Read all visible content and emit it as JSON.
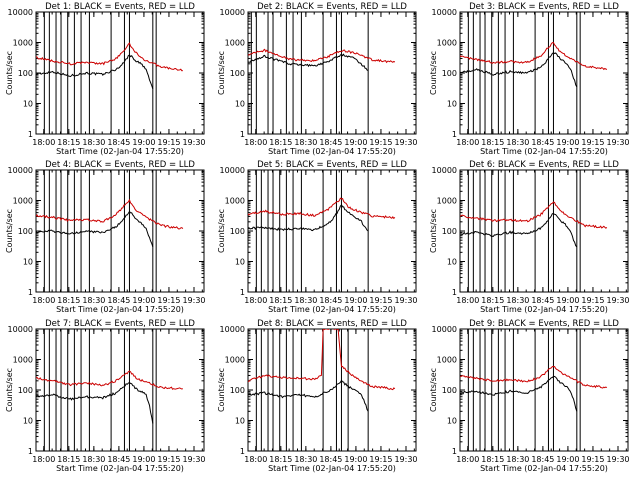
{
  "chart_data": [
    {
      "type": "line",
      "title": "Det 1: BLACK = Events, RED = LLD",
      "xlabel": "Start Time (02-Jan-04 17:55:20)",
      "ylabel": "Counts/sec",
      "xlim": [
        17.9222,
        19.6
      ],
      "ylim": [
        1,
        10000
      ],
      "yscale": "log",
      "xticks": [
        "18:00",
        "18:15",
        "18:30",
        "18:45",
        "19:00",
        "19:15",
        "19:30"
      ],
      "yticks": [
        "1",
        "10",
        "100",
        "1000",
        "10000"
      ],
      "vlines_min": [
        -2,
        5,
        8,
        12,
        15,
        19,
        23,
        27,
        32,
        45,
        53,
        56,
        70,
        72
      ],
      "series": [
        {
          "name": "Events",
          "color": "#000000",
          "x_min": [
            -3.5,
            -3,
            0,
            10,
            20,
            30,
            40,
            48,
            52,
            56,
            60,
            63,
            66,
            68,
            70
          ],
          "values": [
            1.5,
            70,
            90,
            110,
            80,
            100,
            90,
            130,
            200,
            400,
            250,
            200,
            130,
            60,
            30
          ]
        },
        {
          "name": "LLD",
          "color": "#cc0000",
          "x_min": [
            -30,
            0,
            10,
            20,
            30,
            40,
            48,
            52,
            56,
            60,
            66,
            75,
            88
          ],
          "values": [
            200,
            320,
            250,
            200,
            220,
            200,
            300,
            500,
            900,
            450,
            250,
            160,
            120
          ]
        }
      ]
    },
    {
      "type": "line",
      "title": "Det 2: BLACK = Events, RED = LLD",
      "xlabel": "Start Time (02-Jan-04 17:55:20)",
      "ylabel": "Counts/sec",
      "xlim": [
        17.9222,
        19.6
      ],
      "ylim": [
        1,
        10000
      ],
      "yscale": "log",
      "xticks": [
        "18:00",
        "18:15",
        "18:30",
        "18:45",
        "19:00",
        "19:15",
        "19:30"
      ],
      "yticks": [
        "1",
        "10",
        "100",
        "1000",
        "10000"
      ],
      "vlines_min": [
        -2,
        2,
        5,
        12,
        15,
        23,
        27,
        32,
        45,
        53,
        56,
        72
      ],
      "series": [
        {
          "name": "Events",
          "color": "#000000",
          "x_min": [
            -3,
            -2.5,
            10,
            25,
            40,
            48,
            56,
            64,
            72
          ],
          "values": [
            15,
            200,
            350,
            200,
            170,
            240,
            400,
            300,
            120
          ]
        },
        {
          "name": "LLD",
          "color": "#cc0000",
          "x_min": [
            -30,
            0,
            10,
            25,
            40,
            48,
            56,
            64,
            75,
            88
          ],
          "values": [
            220,
            400,
            550,
            280,
            250,
            350,
            550,
            450,
            260,
            230
          ]
        }
      ]
    },
    {
      "type": "line",
      "title": "Det 3: BLACK = Events, RED = LLD",
      "xlabel": "Start Time (02-Jan-04 17:55:20)",
      "ylabel": "Counts/sec",
      "xlim": [
        17.9222,
        19.6
      ],
      "ylim": [
        1,
        10000
      ],
      "yscale": "log",
      "xticks": [
        "18:00",
        "18:15",
        "18:30",
        "18:45",
        "19:00",
        "19:15",
        "19:30"
      ],
      "yticks": [
        "1",
        "10",
        "100",
        "1000",
        "10000"
      ],
      "vlines_min": [
        -2,
        5,
        8,
        12,
        15,
        19,
        23,
        27,
        32,
        45,
        53,
        56,
        70,
        72
      ],
      "series": [
        {
          "name": "Events",
          "color": "#000000",
          "x_min": [
            -3.5,
            -3,
            0,
            10,
            20,
            30,
            40,
            48,
            52,
            56,
            60,
            63,
            66,
            68,
            70
          ],
          "values": [
            2,
            80,
            100,
            130,
            90,
            110,
            100,
            150,
            250,
            500,
            300,
            220,
            150,
            70,
            35
          ]
        },
        {
          "name": "LLD",
          "color": "#cc0000",
          "x_min": [
            -30,
            0,
            10,
            20,
            30,
            40,
            48,
            52,
            56,
            60,
            66,
            75,
            88
          ],
          "values": [
            200,
            350,
            280,
            220,
            240,
            220,
            350,
            600,
            1000,
            500,
            300,
            170,
            130
          ]
        }
      ]
    },
    {
      "type": "line",
      "title": "Det 4: BLACK = Events, RED = LLD",
      "xlabel": "Start Time (02-Jan-04 17:55:20)",
      "ylabel": "Counts/sec",
      "xlim": [
        17.9222,
        19.6
      ],
      "ylim": [
        1,
        10000
      ],
      "yscale": "log",
      "xticks": [
        "18:00",
        "18:15",
        "18:30",
        "18:45",
        "19:00",
        "19:15",
        "19:30"
      ],
      "yticks": [
        "1",
        "10",
        "100",
        "1000",
        "10000"
      ],
      "vlines_min": [
        -2,
        5,
        8,
        12,
        15,
        19,
        23,
        27,
        32,
        45,
        53,
        56,
        70,
        72
      ],
      "series": [
        {
          "name": "Events",
          "color": "#000000",
          "x_min": [
            -3.5,
            -3,
            0,
            10,
            20,
            30,
            40,
            48,
            52,
            56,
            60,
            63,
            66,
            68,
            70
          ],
          "values": [
            3,
            70,
            90,
            100,
            80,
            100,
            90,
            140,
            220,
            450,
            250,
            180,
            120,
            60,
            30
          ]
        },
        {
          "name": "LLD",
          "color": "#cc0000",
          "x_min": [
            -30,
            0,
            10,
            20,
            30,
            40,
            48,
            52,
            56,
            60,
            66,
            75,
            88
          ],
          "values": [
            130,
            320,
            280,
            220,
            240,
            200,
            350,
            600,
            1000,
            500,
            280,
            150,
            120
          ]
        }
      ]
    },
    {
      "type": "line",
      "title": "Det 5: BLACK = Events, RED = LLD",
      "xlabel": "Start Time (02-Jan-04 17:55:20)",
      "ylabel": "Counts/sec",
      "xlim": [
        17.9222,
        19.6
      ],
      "ylim": [
        1,
        10000
      ],
      "yscale": "log",
      "xticks": [
        "18:00",
        "18:15",
        "18:30",
        "18:45",
        "19:00",
        "19:15",
        "19:30"
      ],
      "yticks": [
        "1",
        "10",
        "100",
        "1000",
        "10000"
      ],
      "vlines_min": [
        -2,
        5,
        8,
        12,
        15,
        19,
        23,
        27,
        32,
        45,
        53,
        56,
        72
      ],
      "series": [
        {
          "name": "Events",
          "color": "#000000",
          "x_min": [
            -3.5,
            -3,
            0,
            10,
            20,
            30,
            40,
            48,
            52,
            56,
            60,
            64,
            68,
            72
          ],
          "values": [
            4,
            100,
            120,
            130,
            110,
            120,
            110,
            170,
            300,
            700,
            400,
            300,
            200,
            100
          ]
        },
        {
          "name": "LLD",
          "color": "#cc0000",
          "x_min": [
            -30,
            0,
            10,
            20,
            30,
            40,
            48,
            52,
            56,
            60,
            66,
            75,
            88
          ],
          "values": [
            250,
            350,
            450,
            350,
            380,
            320,
            500,
            800,
            1200,
            600,
            450,
            300,
            280
          ]
        }
      ]
    },
    {
      "type": "line",
      "title": "Det 6: BLACK = Events, RED = LLD",
      "xlabel": "Start Time (02-Jan-04 17:55:20)",
      "ylabel": "Counts/sec",
      "xlim": [
        17.9222,
        19.6
      ],
      "ylim": [
        1,
        10000
      ],
      "yscale": "log",
      "xticks": [
        "18:00",
        "18:15",
        "18:30",
        "18:45",
        "19:00",
        "19:15",
        "19:30"
      ],
      "yticks": [
        "1",
        "10",
        "100",
        "1000",
        "10000"
      ],
      "vlines_min": [
        -2,
        5,
        8,
        12,
        15,
        19,
        23,
        27,
        32,
        45,
        53,
        56,
        70,
        72
      ],
      "series": [
        {
          "name": "Events",
          "color": "#000000",
          "x_min": [
            -3.5,
            -3,
            0,
            10,
            20,
            30,
            40,
            48,
            52,
            56,
            60,
            63,
            66,
            68,
            70
          ],
          "values": [
            3,
            60,
            80,
            90,
            70,
            90,
            80,
            120,
            200,
            400,
            220,
            170,
            110,
            50,
            30
          ]
        },
        {
          "name": "LLD",
          "color": "#cc0000",
          "x_min": [
            -30,
            0,
            10,
            20,
            30,
            40,
            48,
            52,
            56,
            60,
            66,
            75,
            88
          ],
          "values": [
            130,
            320,
            260,
            220,
            230,
            210,
            330,
            550,
            900,
            450,
            280,
            150,
            130
          ]
        }
      ]
    },
    {
      "type": "line",
      "title": "Det 7: BLACK = Events, RED = LLD",
      "xlabel": "Start Time (02-Jan-04 17:55:20)",
      "ylabel": "Counts/sec",
      "xlim": [
        17.9222,
        19.6
      ],
      "ylim": [
        1,
        10000
      ],
      "yscale": "log",
      "xticks": [
        "18:00",
        "18:15",
        "18:30",
        "18:45",
        "19:00",
        "19:15",
        "19:30"
      ],
      "yticks": [
        "1",
        "10",
        "100",
        "1000",
        "10000"
      ],
      "vlines_min": [
        -2,
        5,
        8,
        12,
        15,
        19,
        23,
        27,
        32,
        45,
        53,
        56,
        70,
        72
      ],
      "series": [
        {
          "name": "Events",
          "color": "#000000",
          "x_min": [
            -3.5,
            -3,
            0,
            10,
            20,
            30,
            40,
            48,
            52,
            56,
            60,
            63,
            66,
            68,
            70
          ],
          "values": [
            4,
            50,
            60,
            70,
            50,
            60,
            55,
            80,
            120,
            180,
            110,
            90,
            70,
            30,
            8
          ]
        },
        {
          "name": "LLD",
          "color": "#cc0000",
          "x_min": [
            -30,
            0,
            10,
            20,
            30,
            40,
            48,
            52,
            56,
            60,
            66,
            75,
            88
          ],
          "values": [
            100,
            250,
            200,
            150,
            170,
            140,
            200,
            280,
            400,
            250,
            180,
            120,
            110
          ]
        }
      ]
    },
    {
      "type": "line",
      "title": "Det 8: BLACK = Events, RED = LLD",
      "xlabel": "Start Time (02-Jan-04 17:55:20)",
      "ylabel": "Counts/sec",
      "xlim": [
        17.9222,
        19.6
      ],
      "ylim": [
        1,
        10000
      ],
      "yscale": "log",
      "xticks": [
        "18:00",
        "18:15",
        "18:30",
        "18:45",
        "19:00",
        "19:15",
        "19:30"
      ],
      "yticks": [
        "1",
        "10",
        "100",
        "1000",
        "10000"
      ],
      "vlines_min": [
        -2,
        5,
        8,
        12,
        15,
        19,
        23,
        27,
        32,
        45,
        53,
        56,
        60,
        72
      ],
      "series": [
        {
          "name": "Events",
          "color": "#000000",
          "x_min": [
            -3.5,
            -3,
            0,
            10,
            20,
            30,
            40,
            48,
            52,
            56,
            60,
            64,
            68,
            72
          ],
          "values": [
            3,
            60,
            70,
            80,
            60,
            70,
            60,
            90,
            120,
            200,
            130,
            100,
            70,
            20
          ]
        },
        {
          "name": "LLD",
          "color": "#cc0000",
          "x_min": [
            -30,
            0,
            10,
            20,
            30,
            40,
            44,
            45,
            52,
            54,
            56,
            60,
            64,
            70,
            75,
            88
          ],
          "values": [
            100,
            200,
            300,
            260,
            250,
            220,
            300,
            10000,
            10000,
            10000,
            600,
            400,
            260,
            170,
            130,
            110
          ]
        }
      ]
    },
    {
      "type": "line",
      "title": "Det 9: BLACK = Events, RED = LLD",
      "xlabel": "Start Time (02-Jan-04 17:55:20)",
      "ylabel": "Counts/sec",
      "xlim": [
        17.9222,
        19.6
      ],
      "ylim": [
        1,
        10000
      ],
      "yscale": "log",
      "xticks": [
        "18:00",
        "18:15",
        "18:30",
        "18:45",
        "19:00",
        "19:15",
        "19:30"
      ],
      "yticks": [
        "1",
        "10",
        "100",
        "1000",
        "10000"
      ],
      "vlines_min": [
        -2,
        5,
        8,
        12,
        15,
        19,
        23,
        27,
        32,
        45,
        53,
        56,
        70,
        72
      ],
      "series": [
        {
          "name": "Events",
          "color": "#000000",
          "x_min": [
            -3.5,
            -3,
            0,
            10,
            20,
            30,
            40,
            48,
            52,
            56,
            60,
            63,
            66,
            68,
            70
          ],
          "values": [
            3,
            70,
            80,
            90,
            70,
            90,
            80,
            120,
            180,
            300,
            180,
            140,
            100,
            50,
            20
          ]
        },
        {
          "name": "LLD",
          "color": "#cc0000",
          "x_min": [
            -30,
            0,
            10,
            20,
            30,
            40,
            48,
            52,
            56,
            60,
            66,
            75,
            88
          ],
          "values": [
            130,
            280,
            240,
            200,
            210,
            190,
            260,
            400,
            600,
            380,
            250,
            140,
            120
          ]
        }
      ]
    }
  ]
}
